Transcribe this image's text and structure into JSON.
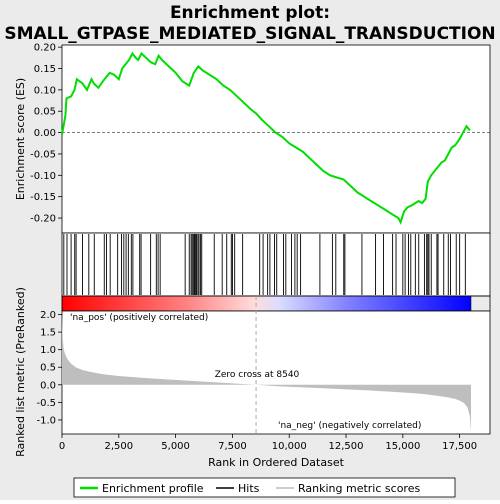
{
  "title_line1": "Enrichment plot:",
  "title_line2": "SMALL_GTPASE_MEDIATED_SIGNAL_TRANSDUCTION",
  "legend": {
    "enrichment_profile": "Enrichment profile",
    "hits": "Hits",
    "ranking_metric": "Ranking metric scores"
  },
  "colors": {
    "enrichment_line": "#00dd00",
    "hits": "#000000",
    "metric_fill": "#bebebe",
    "positive_label": "#cc0000",
    "negative_label": "#0000cc",
    "bar_positive": "#ff0000",
    "bar_negative": "#0000ff"
  },
  "chart_data": [
    {
      "type": "line",
      "name": "enrichment-plot",
      "ylabel": "Enrichment score (ES)",
      "xlim": [
        0,
        18000
      ],
      "ylim": [
        -0.235,
        0.205
      ],
      "yticks": [
        0.2,
        0.15,
        0.1,
        0.05,
        0.0,
        -0.05,
        -0.1,
        -0.15,
        -0.2
      ],
      "ytick_labels": [
        "0.20",
        "0.15",
        "0.10",
        "0.05",
        "0.00",
        "-0.05",
        "-0.10",
        "-0.15",
        "-0.20"
      ],
      "grid": false,
      "x": [
        0,
        150,
        200,
        400,
        550,
        650,
        900,
        1100,
        1300,
        1400,
        1600,
        1800,
        1950,
        2100,
        2300,
        2500,
        2650,
        2800,
        2950,
        3100,
        3250,
        3350,
        3500,
        3700,
        3900,
        4100,
        4250,
        4400,
        4700,
        5000,
        5300,
        5600,
        5800,
        6000,
        6200,
        6500,
        6800,
        7100,
        7400,
        7700,
        8000,
        8300,
        8540,
        8800,
        9100,
        9400,
        9700,
        10000,
        10300,
        10600,
        10900,
        11200,
        11500,
        11800,
        12100,
        12400,
        12700,
        13000,
        13300,
        13600,
        13900,
        14200,
        14500,
        14800,
        14900,
        15050,
        15200,
        15400,
        15550,
        15700,
        15850,
        16000,
        16100,
        16250,
        16400,
        16550,
        16700,
        16850,
        17000,
        17150,
        17300,
        17500,
        17650,
        17800,
        17950
      ],
      "y": [
        -0.005,
        0.04,
        0.08,
        0.085,
        0.1,
        0.125,
        0.115,
        0.1,
        0.125,
        0.115,
        0.105,
        0.12,
        0.13,
        0.14,
        0.135,
        0.125,
        0.15,
        0.16,
        0.17,
        0.185,
        0.175,
        0.17,
        0.185,
        0.175,
        0.165,
        0.16,
        0.18,
        0.17,
        0.155,
        0.14,
        0.12,
        0.11,
        0.14,
        0.155,
        0.145,
        0.135,
        0.125,
        0.11,
        0.1,
        0.085,
        0.07,
        0.055,
        0.045,
        0.03,
        0.015,
        0.0,
        -0.01,
        -0.025,
        -0.035,
        -0.045,
        -0.06,
        -0.075,
        -0.09,
        -0.1,
        -0.105,
        -0.11,
        -0.125,
        -0.14,
        -0.15,
        -0.16,
        -0.17,
        -0.18,
        -0.19,
        -0.2,
        -0.21,
        -0.185,
        -0.175,
        -0.17,
        -0.165,
        -0.16,
        -0.165,
        -0.155,
        -0.115,
        -0.1,
        -0.09,
        -0.08,
        -0.07,
        -0.065,
        -0.05,
        -0.035,
        -0.03,
        -0.015,
        0.0,
        0.015,
        0.005
      ]
    },
    {
      "type": "scatter",
      "name": "hits",
      "xlim": [
        0,
        18000
      ],
      "x": [
        80,
        220,
        400,
        560,
        620,
        900,
        1180,
        1420,
        1860,
        1960,
        2120,
        2450,
        2620,
        2720,
        2820,
        2920,
        3050,
        3120,
        3420,
        3480,
        3900,
        4150,
        4230,
        4320,
        5420,
        5600,
        5680,
        5730,
        5780,
        5830,
        5870,
        5920,
        5980,
        6030,
        6100,
        6150,
        6700,
        7050,
        7250,
        7450,
        7500,
        7600,
        7950,
        8700,
        8850,
        9050,
        9150,
        9350,
        9450,
        9750,
        9850,
        10100,
        10250,
        10350,
        10500,
        11350,
        11900,
        12050,
        12400,
        12450,
        13200,
        13800,
        14150,
        14550,
        14700,
        15000,
        15100,
        15250,
        15350,
        15550,
        15700,
        15950,
        16050,
        16100,
        16150,
        16250,
        16500,
        16550,
        16800,
        17000,
        17100,
        17350,
        17500,
        17750
      ]
    },
    {
      "type": "area",
      "name": "ranked-list-metric",
      "ylabel": "Ranked list metric (PreRanked)",
      "xlabel": "Rank in Ordered Dataset",
      "xlim": [
        0,
        18000
      ],
      "ylim": [
        -1.4,
        2.1
      ],
      "xticks": [
        0,
        2500,
        5000,
        7500,
        10000,
        12500,
        15000,
        17500
      ],
      "xtick_labels": [
        "0",
        "2,500",
        "5,000",
        "7,500",
        "10,000",
        "12,500",
        "15,000",
        "17,500"
      ],
      "yticks": [
        2.0,
        1.5,
        1.0,
        0.5,
        0.0,
        -0.5,
        -1.0
      ],
      "ytick_labels": [
        "2.0",
        "1.5",
        "1.0",
        "0.5",
        "0.0",
        "-0.5",
        "-1.0"
      ],
      "x": [
        0,
        30,
        80,
        150,
        250,
        400,
        600,
        900,
        1300,
        1800,
        2500,
        3500,
        4500,
        5500,
        6500,
        7500,
        8540,
        9500,
        10500,
        11500,
        12500,
        13500,
        14500,
        15500,
        16000,
        16500,
        17000,
        17300,
        17500,
        17700,
        17850,
        17950,
        18000
      ],
      "y": [
        2.05,
        1.3,
        1.0,
        0.85,
        0.72,
        0.6,
        0.5,
        0.42,
        0.36,
        0.3,
        0.25,
        0.2,
        0.16,
        0.12,
        0.08,
        0.04,
        0.0,
        -0.04,
        -0.07,
        -0.1,
        -0.13,
        -0.16,
        -0.2,
        -0.24,
        -0.27,
        -0.31,
        -0.36,
        -0.4,
        -0.45,
        -0.52,
        -0.65,
        -0.9,
        -1.35
      ],
      "zero_cross": 8540,
      "zero_cross_label": "Zero cross at 8540",
      "positive_label": "'na_pos' (positively correlated)",
      "negative_label": "'na_neg' (negatively correlated)"
    }
  ]
}
